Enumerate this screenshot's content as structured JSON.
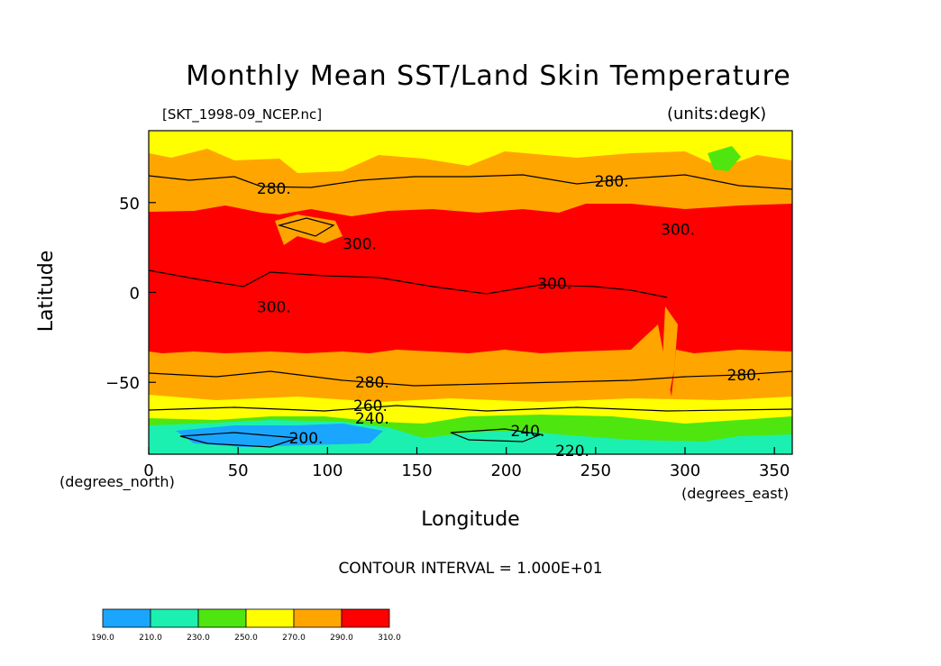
{
  "chart_data": {
    "type": "heatmap",
    "title": "Monthly Mean SST/Land Skin Temperature",
    "subtitle_left": "[SKT_1998-09_NCEP.nc]",
    "subtitle_right": "(units:degK)",
    "xlabel": "Longitude",
    "ylabel": "Latitude",
    "x_units": "(degrees_east)",
    "y_units": "(degrees_north)",
    "xlim": [
      0,
      360
    ],
    "ylim": [
      -90,
      90
    ],
    "x_ticks": [
      "0",
      "50",
      "100",
      "150",
      "200",
      "250",
      "300",
      "350"
    ],
    "x_tick_values": [
      0,
      50,
      100,
      150,
      200,
      250,
      300,
      350
    ],
    "y_ticks": [
      "50",
      "0",
      "−50"
    ],
    "y_tick_values": [
      50,
      0,
      -50
    ],
    "contour_interval_text": "CONTOUR INTERVAL = 1.000E+01",
    "contour_labels": [
      {
        "text": "280.",
        "lon": 70,
        "lat": 58
      },
      {
        "text": "280.",
        "lon": 259,
        "lat": 62
      },
      {
        "text": "300.",
        "lon": 118,
        "lat": 27
      },
      {
        "text": "300.",
        "lon": 296,
        "lat": 35
      },
      {
        "text": "300.",
        "lon": 227,
        "lat": 5
      },
      {
        "text": "300.",
        "lon": 70,
        "lat": -8
      },
      {
        "text": "280.",
        "lon": 125,
        "lat": -50
      },
      {
        "text": "280.",
        "lon": 333,
        "lat": -46
      },
      {
        "text": "260.",
        "lon": 124,
        "lat": -63
      },
      {
        "text": "240.",
        "lon": 125,
        "lat": -70
      },
      {
        "text": "200.",
        "lon": 88,
        "lat": -81
      },
      {
        "text": "240.",
        "lon": 212,
        "lat": -77
      },
      {
        "text": "220.",
        "lon": 237,
        "lat": -88
      }
    ],
    "colorbar": {
      "ticks": [
        "190.0",
        "210.0",
        "230.0",
        "250.0",
        "270.0",
        "290.0",
        "310.0"
      ],
      "levels": [
        190,
        210,
        230,
        250,
        270,
        290,
        310
      ],
      "colors": [
        "#1aa6ff",
        "#1cf0b0",
        "#4ee60e",
        "#ffff00",
        "#ffa500",
        "#ff0000"
      ]
    },
    "grid": false
  }
}
